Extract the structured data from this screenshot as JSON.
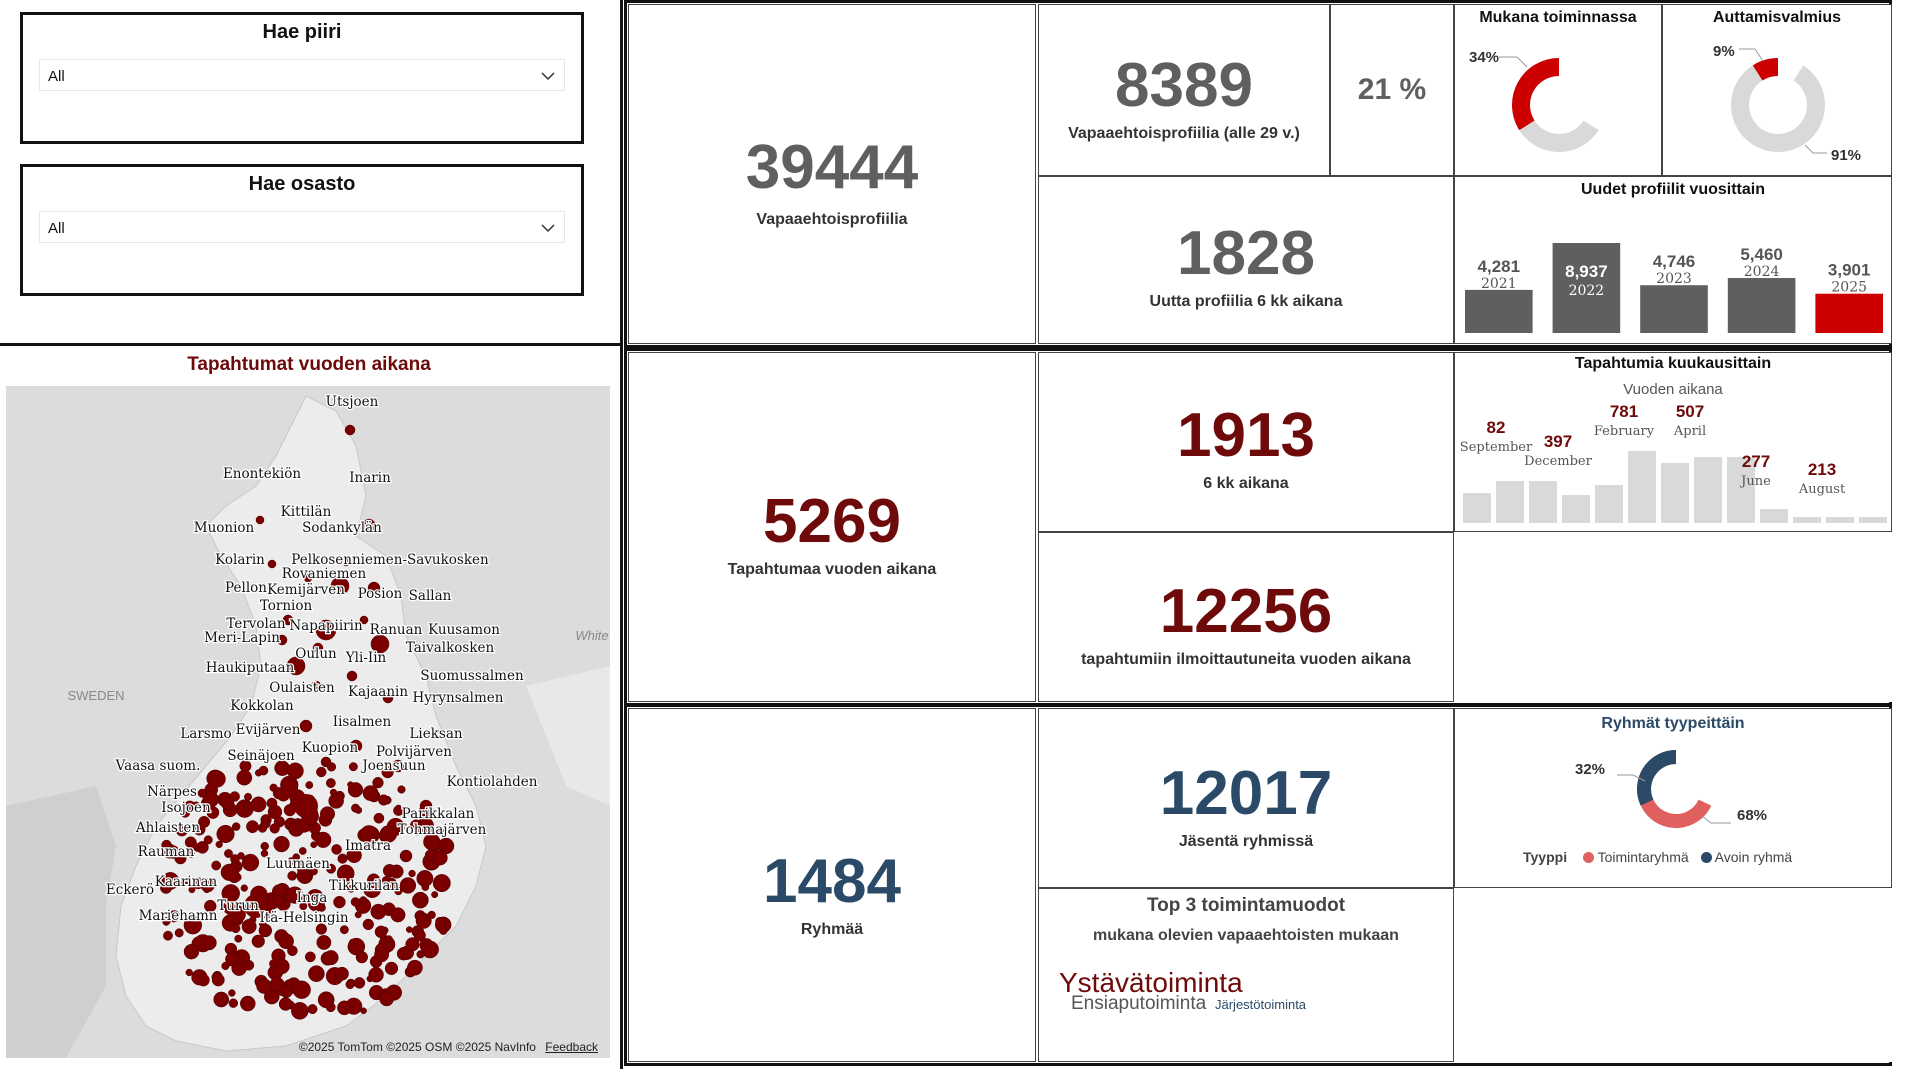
{
  "filters": {
    "district": {
      "title": "Hae piiri",
      "value": "All"
    },
    "department": {
      "title": "Hae osasto",
      "value": "All"
    }
  },
  "kpis": {
    "volunteer_profiles": {
      "value": "39444",
      "label": "Vapaaehtoisprofiilia"
    },
    "young_profiles": {
      "value": "8389",
      "label": "Vapaaehtoisprofiilia (alle 29 v.)"
    },
    "young_share": {
      "value": "21 %"
    },
    "new_profiles_6m": {
      "value": "1828",
      "label": "Uutta profiilia 6 kk aikana"
    },
    "events_year": {
      "value": "5269",
      "label": "Tapahtumaa vuoden aikana"
    },
    "events_6m": {
      "value": "1913",
      "label": "6 kk aikana"
    },
    "event_signups": {
      "value": "12256",
      "label": "tapahtumiin ilmoittautuneita vuoden aikana"
    },
    "groups": {
      "value": "1484",
      "label": "Ryhmää"
    },
    "group_members": {
      "value": "12017",
      "label": "Jäsentä ryhmissä"
    }
  },
  "colors": {
    "red": "#cc0000",
    "dark_red": "#6e0a0a",
    "gray": "#5f5f5f",
    "light_gray": "#d9d9d9",
    "blue": "#2a4a68",
    "pink": "#e06060"
  },
  "donut_active": {
    "title": "Mukana toiminnassa",
    "label_a": "34%",
    "value_a": 34
  },
  "donut_helping": {
    "title": "Auttamisvalmius",
    "label_a": "9%",
    "value_a": 9,
    "label_b": "91%"
  },
  "new_by_year": {
    "title": "Uudet profiilit vuosittain",
    "bars": [
      {
        "year": "2021",
        "label": "4,281",
        "value": 4281
      },
      {
        "year": "2022",
        "label": "8,937",
        "value": 8937
      },
      {
        "year": "2023",
        "label": "4,746",
        "value": 4746
      },
      {
        "year": "2024",
        "label": "5,460",
        "value": 5460
      },
      {
        "year": "2025",
        "label": "3,901",
        "value": 3901
      }
    ]
  },
  "monthly": {
    "title": "Tapahtumia kuukausittain",
    "subtitle": "Vuoden aikana",
    "annotations": [
      {
        "month": "September",
        "label": "82"
      },
      {
        "month": "December",
        "label": "397"
      },
      {
        "month": "February",
        "label": "781"
      },
      {
        "month": "April",
        "label": "507"
      },
      {
        "month": "June",
        "label": "277"
      },
      {
        "month": "August",
        "label": "213"
      }
    ]
  },
  "groups_by_type": {
    "title": "Ryhmät tyypeittäin",
    "label_a": "32%",
    "label_b": "68%",
    "value_a": 32,
    "legend_title": "Tyyppi",
    "legend": [
      "Toimintaryhmä",
      "Avoin ryhmä"
    ]
  },
  "top3": {
    "title": "Top 3 toimintamuodot",
    "subtitle": "mukana olevien vapaaehtoisten mukaan",
    "words": [
      "Ystävätoiminta",
      "Ensiaputoiminta",
      "Järjestötoiminta"
    ]
  },
  "map": {
    "title": "Tapahtumat vuoden aikana",
    "attribution": "©2025 TomTom  ©2025 OSM  ©2025 NavInfo",
    "feedback": "Feedback",
    "labels": [
      "Utsjoen",
      "Enontekiön",
      "Inarin",
      "Kittilän",
      "Muonion",
      "Sodankylän",
      "Kolarin",
      "Pelkosenniemen-Savukosken",
      "Rovaniemen",
      "Pellon",
      "Kemijärven",
      "Posion",
      "Sallan",
      "Tornion",
      "Tervolan",
      "Napapiirin",
      "Ranuan",
      "Kuusamon",
      "Meri-Lapin",
      "Taivalkosken",
      "Oulun",
      "Yli-Iin",
      "Haukiputaan",
      "Suomussalmen",
      "Oulaisten",
      "Kajaanin",
      "Hyrynsalmen",
      "Kokkolan",
      "Iisalmen",
      "Larsmo",
      "Evijärven",
      "Lieksan",
      "Kuopion",
      "Polvijärven",
      "Seinäjoen",
      "Vaasa suom.",
      "Joensuun",
      "Närpes",
      "Kontiolahden",
      "Isojoen",
      "Ahlaisten",
      "Parikkalan",
      "Rauman",
      "Tohmajärven",
      "Imatra",
      "Kaarinan",
      "Luumäen",
      "Eckerö",
      "Tikkurilan",
      "Inga",
      "Turun",
      "Mariehamn",
      "Itä-Helsingin",
      "SWEDEN",
      "White"
    ]
  }
}
